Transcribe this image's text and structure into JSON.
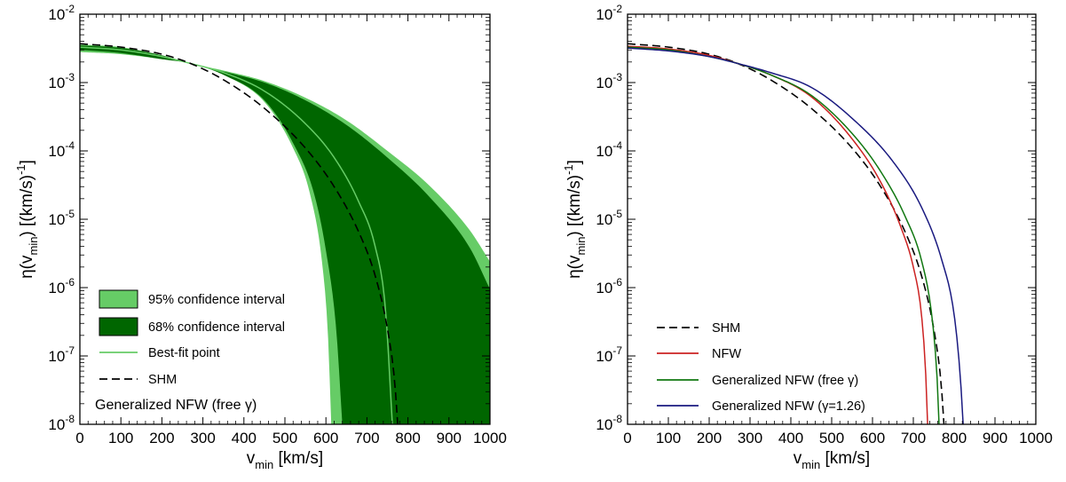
{
  "chart_data": [
    {
      "type": "area",
      "xlabel": "v_min [km/s]",
      "ylabel": "η(v_min) [(km/s)^-1]",
      "xlim": [
        0,
        1000
      ],
      "ylim": [
        1e-08,
        0.01
      ],
      "yscale": "log",
      "xticks": [
        "0",
        "100",
        "200",
        "300",
        "400",
        "500",
        "600",
        "700",
        "800",
        "900",
        "1000"
      ],
      "yticks": [
        {
          "base": "10",
          "exp": "-8"
        },
        {
          "base": "10",
          "exp": "-7"
        },
        {
          "base": "10",
          "exp": "-6"
        },
        {
          "base": "10",
          "exp": "-5"
        },
        {
          "base": "10",
          "exp": "-4"
        },
        {
          "base": "10",
          "exp": "-3"
        },
        {
          "base": "10",
          "exp": "-2"
        }
      ],
      "bands": [
        {
          "name": "95% confidence interval",
          "color": "#66cc66",
          "lower": {
            "x": [
              0,
              100,
              200,
              270,
              350,
              450,
              520,
              560,
              590,
              605,
              613
            ],
            "y": [
              0.0028,
              0.0026,
              0.0022,
              0.0019,
              0.0013,
              0.00052,
              0.00011,
              2.5e-05,
              2.5e-06,
              2e-07,
              1e-08
            ]
          },
          "upper": {
            "x": [
              0,
              100,
              200,
              270,
              350,
              450,
              550,
              650,
              750,
              850,
              950,
              1000
            ],
            "y": [
              0.0036,
              0.0033,
              0.0025,
              0.0019,
              0.0015,
              0.00105,
              0.0006,
              0.00028,
              0.0001,
              3.2e-05,
              7e-06,
              2.4e-06
            ]
          }
        },
        {
          "name": "68% confidence interval",
          "color": "#006600",
          "lower": {
            "x": [
              0,
              100,
              200,
              270,
              350,
              450,
              520,
              570,
              600,
              625,
              640
            ],
            "y": [
              0.003,
              0.0027,
              0.0022,
              0.0019,
              0.0013,
              0.00055,
              0.00013,
              2.5e-05,
              3.5e-06,
              2.5e-07,
              1e-08
            ]
          },
          "upper": {
            "x": [
              0,
              100,
              200,
              270,
              350,
              450,
              550,
              650,
              750,
              850,
              950,
              1000
            ],
            "y": [
              0.0035,
              0.0032,
              0.0025,
              0.0019,
              0.00145,
              0.001,
              0.00055,
              0.00024,
              8e-05,
              2.2e-05,
              3.9e-06,
              9.5e-07
            ]
          }
        }
      ],
      "series": [
        {
          "name": "Best-fit point",
          "color": "#66cc66",
          "style": "solid",
          "x": [
            0,
            100,
            200,
            270,
            350,
            450,
            550,
            620,
            680,
            720,
            745,
            762
          ],
          "y": [
            0.0033,
            0.003,
            0.0024,
            0.0019,
            0.0014,
            0.00075,
            0.00025,
            8e-05,
            1.8e-05,
            4e-06,
            5e-07,
            1e-08
          ]
        },
        {
          "name": "SHM",
          "color": "#000000",
          "style": "dashed",
          "x": [
            0,
            100,
            200,
            270,
            350,
            450,
            550,
            620,
            680,
            720,
            750,
            768,
            775
          ],
          "y": [
            0.0037,
            0.0033,
            0.0026,
            0.0019,
            0.0011,
            0.00042,
            0.00011,
            3e-05,
            6.5e-06,
            1.5e-06,
            2.5e-07,
            4e-08,
            1e-08
          ]
        }
      ],
      "legend": {
        "placement": "bottom-left",
        "entries": [
          {
            "label": "95% confidence interval",
            "kind": "box",
            "color": "#66cc66"
          },
          {
            "label": "68% confidence interval",
            "kind": "box",
            "color": "#006600"
          },
          {
            "label": "Best-fit point",
            "kind": "line",
            "color": "#66cc66",
            "style": "solid"
          },
          {
            "label": "SHM",
            "kind": "line",
            "color": "#000000",
            "style": "dashed"
          }
        ]
      },
      "annotation": "Generalized NFW (free  γ)"
    },
    {
      "type": "line",
      "xlabel": "v_min [km/s]",
      "ylabel": "η(v_min) [(km/s)^-1]",
      "xlim": [
        0,
        1000
      ],
      "ylim": [
        1e-08,
        0.01
      ],
      "yscale": "log",
      "xticks": [
        "0",
        "100",
        "200",
        "300",
        "400",
        "500",
        "600",
        "700",
        "800",
        "900",
        "1000"
      ],
      "yticks": [
        {
          "base": "10",
          "exp": "-8"
        },
        {
          "base": "10",
          "exp": "-7"
        },
        {
          "base": "10",
          "exp": "-6"
        },
        {
          "base": "10",
          "exp": "-5"
        },
        {
          "base": "10",
          "exp": "-4"
        },
        {
          "base": "10",
          "exp": "-3"
        },
        {
          "base": "10",
          "exp": "-2"
        }
      ],
      "series": [
        {
          "name": "SHM",
          "color": "#000000",
          "style": "dashed",
          "x": [
            0,
            100,
            200,
            270,
            350,
            450,
            550,
            620,
            680,
            720,
            750,
            768,
            775
          ],
          "y": [
            0.0037,
            0.0033,
            0.0026,
            0.0019,
            0.0011,
            0.00042,
            0.00011,
            3e-05,
            6.5e-06,
            1.5e-06,
            2.5e-07,
            4e-08,
            1e-08
          ]
        },
        {
          "name": "NFW",
          "color": "#cc2222",
          "style": "solid",
          "x": [
            0,
            100,
            200,
            270,
            350,
            450,
            550,
            620,
            670,
            700,
            720,
            730,
            735
          ],
          "y": [
            0.0034,
            0.0031,
            0.0025,
            0.0019,
            0.0013,
            0.00062,
            0.00015,
            3.5e-05,
            7.5e-06,
            2e-06,
            4e-07,
            6e-08,
            1e-08
          ]
        },
        {
          "name": "Generalized NFW (free γ)",
          "color": "#117711",
          "style": "solid",
          "x": [
            0,
            100,
            200,
            270,
            350,
            450,
            550,
            620,
            680,
            720,
            745,
            758,
            763
          ],
          "y": [
            0.0033,
            0.003,
            0.0024,
            0.0019,
            0.0013,
            0.00065,
            0.00018,
            5e-05,
            1.1e-05,
            2.5e-06,
            4e-07,
            5e-08,
            1e-08
          ]
        },
        {
          "name": "Generalized NFW (γ=1.26)",
          "color": "#1a1a80",
          "style": "solid",
          "x": [
            0,
            100,
            200,
            270,
            350,
            450,
            550,
            650,
            720,
            770,
            800,
            815,
            822
          ],
          "y": [
            0.0032,
            0.0029,
            0.0024,
            0.0019,
            0.0014,
            0.00085,
            0.0003,
            7e-05,
            1.5e-05,
            2.5e-06,
            4e-07,
            5e-08,
            1e-08
          ]
        }
      ],
      "legend": {
        "placement": "bottom-left",
        "entries": [
          {
            "label": "SHM",
            "color": "#000000",
            "style": "dashed"
          },
          {
            "label": "NFW",
            "color": "#cc2222",
            "style": "solid"
          },
          {
            "label": "Generalized NFW (free γ)",
            "color": "#117711",
            "style": "solid"
          },
          {
            "label": "Generalized NFW (γ=1.26)",
            "color": "#1a1a80",
            "style": "solid"
          }
        ]
      }
    }
  ]
}
